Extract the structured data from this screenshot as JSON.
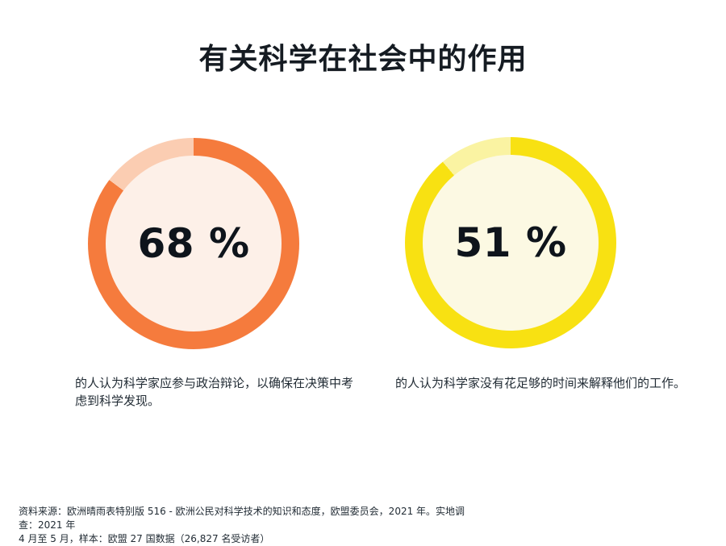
{
  "page": {
    "background": "#FFFFFF",
    "title": "有关科学在社会中的作用",
    "title_color": "#151B22"
  },
  "chart_data": [
    {
      "type": "pie",
      "title": "有关科学在社会中的作用",
      "value_percent": 68,
      "value_label": "68 %",
      "caption": "的人认为科学家应参与政治辩论，以确保在决策中考虑到科学发现。",
      "legend_position": "none",
      "colors": {
        "ring": "#F57B3D",
        "ring_highlight": "#FBCDB2",
        "center_fill": "#FDF0E8",
        "value_text": "#0E141B"
      },
      "ring_segments_deg": {
        "main": 307,
        "highlight": 53
      }
    },
    {
      "type": "pie",
      "title": "有关科学在社会中的作用",
      "value_percent": 51,
      "value_label": "51 %",
      "caption": "的人认为科学家没有花足够的时间来解释他们的工作。",
      "legend_position": "none",
      "colors": {
        "ring": "#F8E112",
        "ring_highlight": "#FAF3A2",
        "center_fill": "#FCF9E3",
        "value_text": "#0E141B"
      },
      "ring_segments_deg": {
        "main": 320,
        "highlight": 40
      }
    }
  ],
  "footer": {
    "line1": "资料来源：欧洲晴雨表特别版 516 - 欧洲公民对科学技术的知识和态度，欧盟委员会，2021 年。实地调查：2021 年",
    "line2": "4 月至 5 月，样本：欧盟 27 国数据（26,827 名受访者）"
  }
}
